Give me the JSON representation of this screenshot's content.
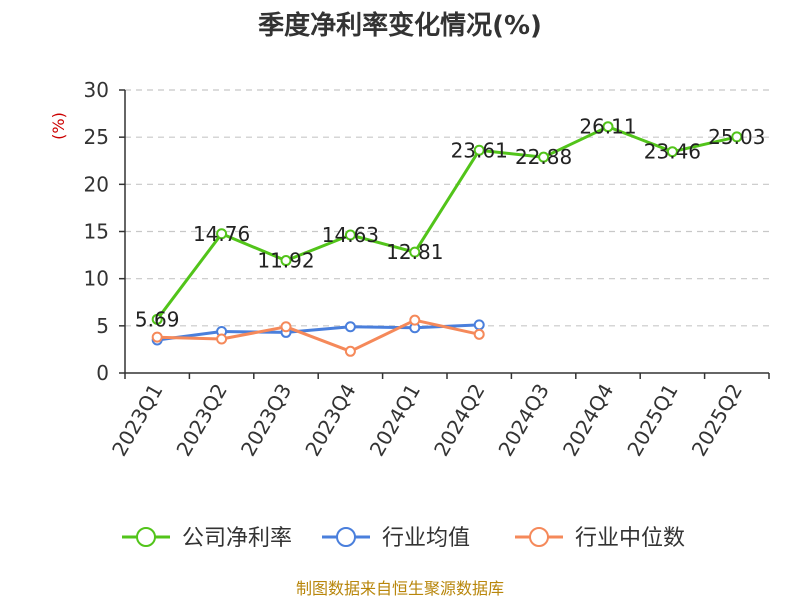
{
  "chart_data": {
    "type": "line",
    "title": "季度净利率变化情况(%)",
    "ylabel": "(%)",
    "categories": [
      "2023Q1",
      "2023Q2",
      "2023Q3",
      "2023Q4",
      "2024Q1",
      "2024Q2",
      "2024Q3",
      "2024Q4",
      "2025Q1",
      "2025Q2"
    ],
    "ylim": [
      0,
      30
    ],
    "yticks": [
      0,
      5,
      10,
      15,
      20,
      25,
      30
    ],
    "grid": true,
    "legend_position": "bottom",
    "series": [
      {
        "name": "公司净利率",
        "color": "#52c41a",
        "values": [
          5.69,
          14.76,
          11.92,
          14.63,
          12.81,
          23.61,
          22.88,
          26.11,
          23.46,
          25.03
        ],
        "labels": [
          "5.69",
          "14.76",
          "11.92",
          "14.63",
          "12.81",
          "23.61",
          "22.88",
          "26.11",
          "23.46",
          "25.03"
        ]
      },
      {
        "name": "行业均值",
        "color": "#4a7fdc",
        "values": [
          3.5,
          4.4,
          4.3,
          4.9,
          4.8,
          5.1,
          null,
          null,
          null,
          null
        ]
      },
      {
        "name": "行业中位数",
        "color": "#f5895a",
        "values": [
          3.8,
          3.6,
          4.9,
          2.3,
          5.6,
          4.1,
          null,
          null,
          null,
          null
        ]
      }
    ],
    "source": "制图数据来自恒生聚源数据库"
  }
}
